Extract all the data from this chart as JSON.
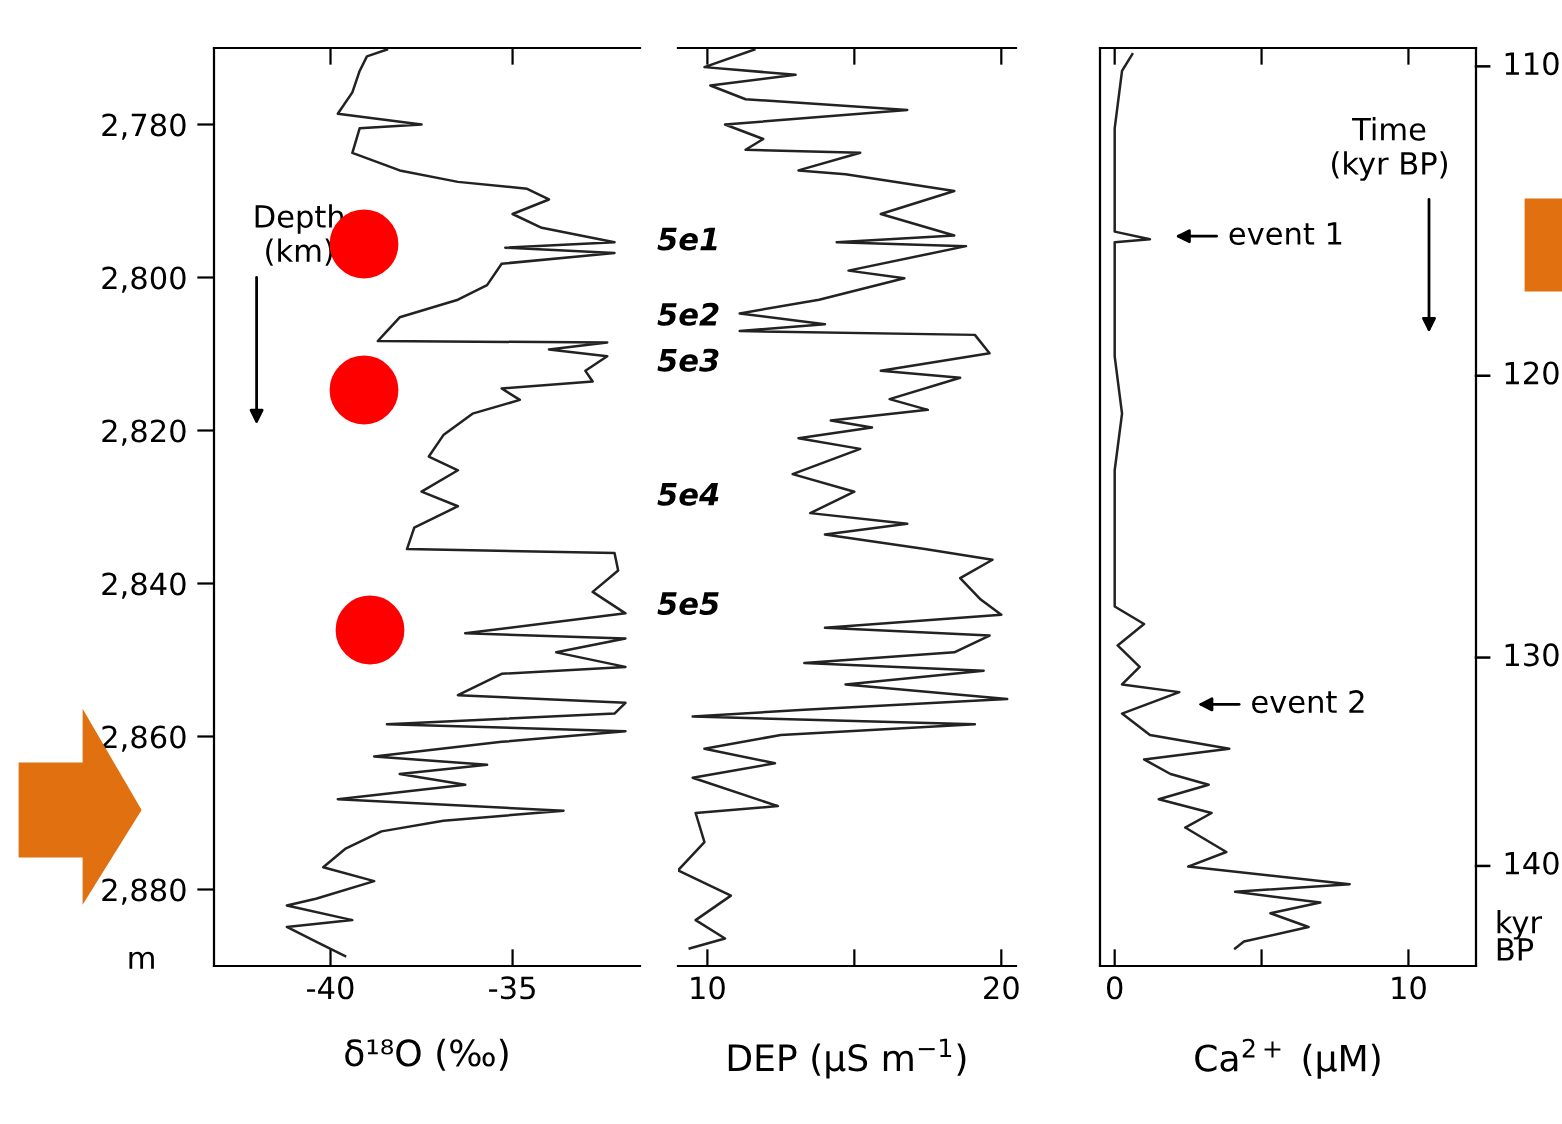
{
  "chart_data": [
    {
      "type": "line",
      "xlabel": "δ¹⁸O (‰)",
      "ylabel": "m",
      "xlim": [
        -43.2,
        -31.5
      ],
      "xticks": [
        -40,
        -35
      ],
      "ylim": [
        2890,
        2770
      ],
      "yticks": [
        {
          "value": 2780,
          "label": "2,780"
        },
        {
          "value": 2800,
          "label": "2,800"
        },
        {
          "value": 2820,
          "label": "2,820"
        },
        {
          "value": 2840,
          "label": "2,840"
        },
        {
          "value": 2860,
          "label": "2,860"
        },
        {
          "value": 2880,
          "label": "2,880"
        }
      ],
      "line_style": "solid",
      "grid": false,
      "legend": false,
      "series": [
        {
          "color": "#222222",
          "x": [
            -38.45,
            -39.0,
            -39.2,
            -39.4,
            -39.8,
            -37.5,
            -39.2,
            -39.4,
            -38.1,
            -36.5,
            -34.6,
            -34.0,
            -35.0,
            -34.2,
            -32.2,
            -35.2,
            -32.2,
            -35.3,
            -35.7,
            -36.5,
            -38.1,
            -38.45,
            -38.7,
            -32.4,
            -34.0,
            -32.4,
            -33.0,
            -32.8,
            -35.3,
            -34.8,
            -36.1,
            -36.9,
            -37.3,
            -36.5,
            -37.5,
            -36.5,
            -37.7,
            -37.9,
            -32.2,
            -32.1,
            -32.8,
            -31.9,
            -36.3,
            -31.9,
            -33.8,
            -31.9,
            -35.3,
            -36.5,
            -31.9,
            -32.2,
            -38.45,
            -31.9,
            -35.3,
            -38.8,
            -35.7,
            -38.1,
            -36.3,
            -39.8,
            -33.6,
            -36.9,
            -38.6,
            -39.6,
            -40.2,
            -38.8,
            -40.4,
            -41.2,
            -39.4,
            -41.2,
            -40.4,
            -39.6
          ],
          "values": [
            2770.2,
            2771.1,
            2773,
            2775.8,
            2778.6,
            2780,
            2780.5,
            2783.7,
            2786,
            2787.5,
            2788.4,
            2789.8,
            2791.7,
            2793.5,
            2795.4,
            2796.1,
            2796.8,
            2798.2,
            2801,
            2802.9,
            2805.2,
            2807,
            2808.3,
            2808.5,
            2809.4,
            2810.3,
            2812.2,
            2813.6,
            2814.5,
            2816,
            2817.8,
            2820.6,
            2823.4,
            2825.2,
            2828,
            2829.9,
            2832.7,
            2835.5,
            2836,
            2838.3,
            2841.1,
            2843.9,
            2846.5,
            2847.2,
            2849.0,
            2850.9,
            2851.8,
            2854.6,
            2855.6,
            2857,
            2858.4,
            2859.3,
            2860.7,
            2862.6,
            2863.7,
            2864.9,
            2866.3,
            2868.2,
            2869.7,
            2871,
            2872.4,
            2874.7,
            2877.1,
            2878.9,
            2881.2,
            2882.1,
            2884,
            2884.9,
            2886.8,
            2888.7
          ]
        }
      ],
      "annotations": [
        "Depth\n(km)",
        "5e1",
        "5e2",
        "5e3",
        "5e4",
        "5e5"
      ]
    },
    {
      "type": "line",
      "xlabel": "DEP (µS m$^{−1}$)",
      "xlim": [
        9.0,
        20.5
      ],
      "xticks": [
        10,
        {
          "value": 15,
          "label": null
        },
        20
      ],
      "ylim": [
        2890,
        2770
      ],
      "tick_labels": "x",
      "line_style": "solid",
      "grid": false,
      "legend": false,
      "series": [
        {
          "color": "#222222",
          "x": [
            11.6,
            9.9,
            13.0,
            10.1,
            11.3,
            16.8,
            10.6,
            11.9,
            11.3,
            15.2,
            13.1,
            14.7,
            18.4,
            15.9,
            18.4,
            14.4,
            18.8,
            14.8,
            16.7,
            13.8,
            11.1,
            14.0,
            11.1,
            19.1,
            19.6,
            15.9,
            18.6,
            16.2,
            17.5,
            14.2,
            15.6,
            13.1,
            15.2,
            12.9,
            15.0,
            13.5,
            16.8,
            14.0,
            17.4,
            19.7,
            18.6,
            19.3,
            20.0,
            14.0,
            19.6,
            18.4,
            13.3,
            19.4,
            14.7,
            20.2,
            13.3,
            9.5,
            19.1,
            12.5,
            9.9,
            12.3,
            9.5,
            12.4,
            9.6,
            9.9,
            9.0,
            10.8,
            9.6,
            10.6,
            9.4
          ],
          "values": [
            2770.2,
            2772.5,
            2773.5,
            2774.9,
            2776.7,
            2778.1,
            2780,
            2781.9,
            2783.3,
            2783.7,
            2786,
            2786.5,
            2788.7,
            2791.7,
            2794.5,
            2795.4,
            2795.9,
            2799.1,
            2800.1,
            2802.9,
            2804.7,
            2806.1,
            2807,
            2807.5,
            2809.9,
            2812.2,
            2813.1,
            2815.9,
            2817.3,
            2818.7,
            2819.6,
            2821,
            2822.4,
            2825.7,
            2828,
            2830.8,
            2832.2,
            2833.6,
            2835.5,
            2836.9,
            2839.3,
            2842.1,
            2844.1,
            2845.8,
            2846.8,
            2849.0,
            2850.4,
            2851.4,
            2853.2,
            2855.1,
            2856.5,
            2857.4,
            2858.4,
            2859.8,
            2861.6,
            2863.5,
            2865.4,
            2869.1,
            2870,
            2873.8,
            2877.5,
            2880.8,
            2884,
            2886.4,
            2887.7
          ]
        }
      ]
    },
    {
      "type": "line",
      "xlabel": "Ca$^{2+}$ (µM)",
      "xlim": [
        -0.5,
        12.3
      ],
      "xticks": [
        0,
        {
          "value": 5,
          "label": null
        },
        10
      ],
      "ylim": [
        2890,
        2770
      ],
      "tick_labels": "x",
      "line_style": "solid",
      "grid": false,
      "legend": false,
      "series": [
        {
          "color": "#222222",
          "x": [
            0.6,
            0.25,
            0.0,
            0.0,
            0.0,
            1.2,
            0.0,
            0.0,
            0.0,
            0.25,
            0.0,
            0.0,
            0.0,
            1.0,
            0.1,
            0.85,
            0.25,
            2.2,
            0.25,
            1.2,
            3.9,
            1.0,
            1.9,
            3.2,
            1.5,
            3.3,
            2.4,
            3.8,
            2.5,
            8.0,
            4.1,
            7.0,
            5.3,
            6.6,
            4.4,
            4.1
          ],
          "values": [
            2770.8,
            2773,
            2780.5,
            2787,
            2794,
            2795,
            2795.4,
            2802.9,
            2810.3,
            2817.8,
            2825.2,
            2834.6,
            2843,
            2845.3,
            2848.1,
            2850.9,
            2853.2,
            2854.2,
            2857,
            2859.8,
            2861.6,
            2863,
            2864.9,
            2866.3,
            2868.2,
            2870,
            2871.9,
            2875.1,
            2877,
            2879.3,
            2880.3,
            2881.7,
            2883.1,
            2884.9,
            2886.8,
            2887.7
          ]
        }
      ],
      "annotations": [
        "Time\n(kyr BP)",
        "event 1",
        "event 2",
        "110",
        "120",
        "130",
        "140",
        "kyr\nBP"
      ]
    }
  ]
}
